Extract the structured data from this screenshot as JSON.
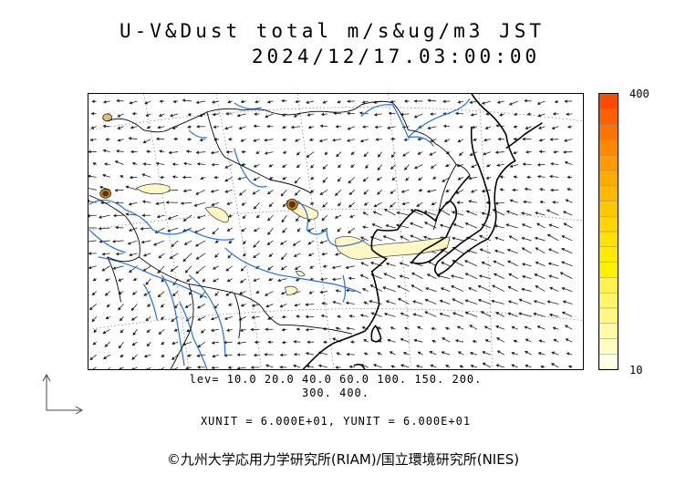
{
  "title_line1": "U-V&Dust total m/s&ug/m3 JST",
  "title_line2": "2024/12/17.03:00:00",
  "legend": {
    "max_label": "400",
    "min_label": "10",
    "colors": [
      "#ffffe8",
      "#fffcc4",
      "#fffaa8",
      "#fff880",
      "#fff566",
      "#fff24a",
      "#fff200",
      "#ffea00",
      "#ffe000",
      "#ffd500",
      "#ffc800",
      "#ffba00",
      "#ffab00",
      "#ff9a00",
      "#ff8800",
      "#ff7400",
      "#ff6000",
      "#ff4a00"
    ]
  },
  "contour_levels_line1": "lev= 10.0 20.0 40.0 60.0 100. 150. 200.",
  "contour_levels_line2": "300. 400.",
  "units": "XUNIT = 6.000E+01, YUNIT = 6.000E+01",
  "credit": "©九州大学応用力学研究所(RIAM)/国立環境研究所(NIES)",
  "colors": {
    "river": "#1f6fe0",
    "coast": "#000000",
    "dust_light": "#fff7c4"
  }
}
